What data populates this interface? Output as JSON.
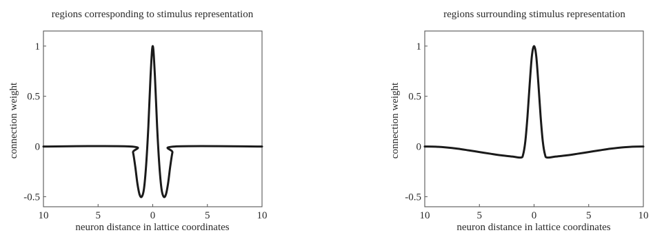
{
  "chart_data": [
    {
      "type": "line",
      "title": "regions corresponding to stimulus representation",
      "xlabel": "neuron distance in lattice coordinates",
      "ylabel": "connection weight",
      "xlim": [
        -10,
        10
      ],
      "ylim": [
        -0.6,
        1.15
      ],
      "xticks": [
        -10,
        -5,
        0,
        5,
        10
      ],
      "xtick_labels": [
        "10",
        "5",
        "0",
        "5",
        "10"
      ],
      "yticks": [
        -0.5,
        0,
        0.5,
        1
      ],
      "ytick_labels": [
        "-0.5",
        "0",
        "0.5",
        "1"
      ],
      "grid": false,
      "series": [
        {
          "x": [
            -10,
            -2.0,
            -1.8,
            -1.6,
            -1.4,
            -1.2,
            -1.0,
            -0.8,
            -0.6,
            -0.4,
            -0.2,
            0,
            0.2,
            0.4,
            0.6,
            0.8,
            1.0,
            1.2,
            1.4,
            1.6,
            1.8,
            2.0,
            10
          ],
          "y": [
            0,
            0,
            -0.06,
            -0.2,
            -0.37,
            -0.48,
            -0.5,
            -0.42,
            -0.18,
            0.2,
            0.7,
            1.0,
            0.7,
            0.2,
            -0.18,
            -0.42,
            -0.5,
            -0.48,
            -0.37,
            -0.2,
            -0.06,
            0,
            0
          ]
        }
      ]
    },
    {
      "type": "line",
      "title": "regions surrounding stimulus representation",
      "xlabel": "neuron distance in lattice coordinates",
      "ylabel": "connection weight",
      "xlim": [
        -10,
        10
      ],
      "ylim": [
        -0.6,
        1.15
      ],
      "xticks": [
        -10,
        -5,
        0,
        5,
        10
      ],
      "xtick_labels": [
        "10",
        "5",
        "0",
        "5",
        "10"
      ],
      "yticks": [
        -0.5,
        0,
        0.5,
        1
      ],
      "ytick_labels": [
        "-0.5",
        "0",
        "0.5",
        "1"
      ],
      "grid": false,
      "series": [
        {
          "x": [
            -10,
            -9,
            -8,
            -7,
            -6,
            -5,
            -4,
            -3,
            -2,
            -1.2,
            -1.0,
            -0.8,
            -0.6,
            -0.4,
            -0.2,
            0,
            0.2,
            0.4,
            0.6,
            0.8,
            1.0,
            1.2,
            2,
            3,
            4,
            5,
            6,
            7,
            8,
            9,
            10
          ],
          "y": [
            0,
            -0.002,
            -0.01,
            -0.022,
            -0.038,
            -0.055,
            -0.072,
            -0.088,
            -0.1,
            -0.11,
            -0.08,
            0.05,
            0.3,
            0.62,
            0.9,
            1.0,
            0.9,
            0.62,
            0.3,
            0.05,
            -0.08,
            -0.11,
            -0.1,
            -0.088,
            -0.072,
            -0.055,
            -0.038,
            -0.022,
            -0.01,
            -0.002,
            0
          ]
        }
      ]
    }
  ]
}
